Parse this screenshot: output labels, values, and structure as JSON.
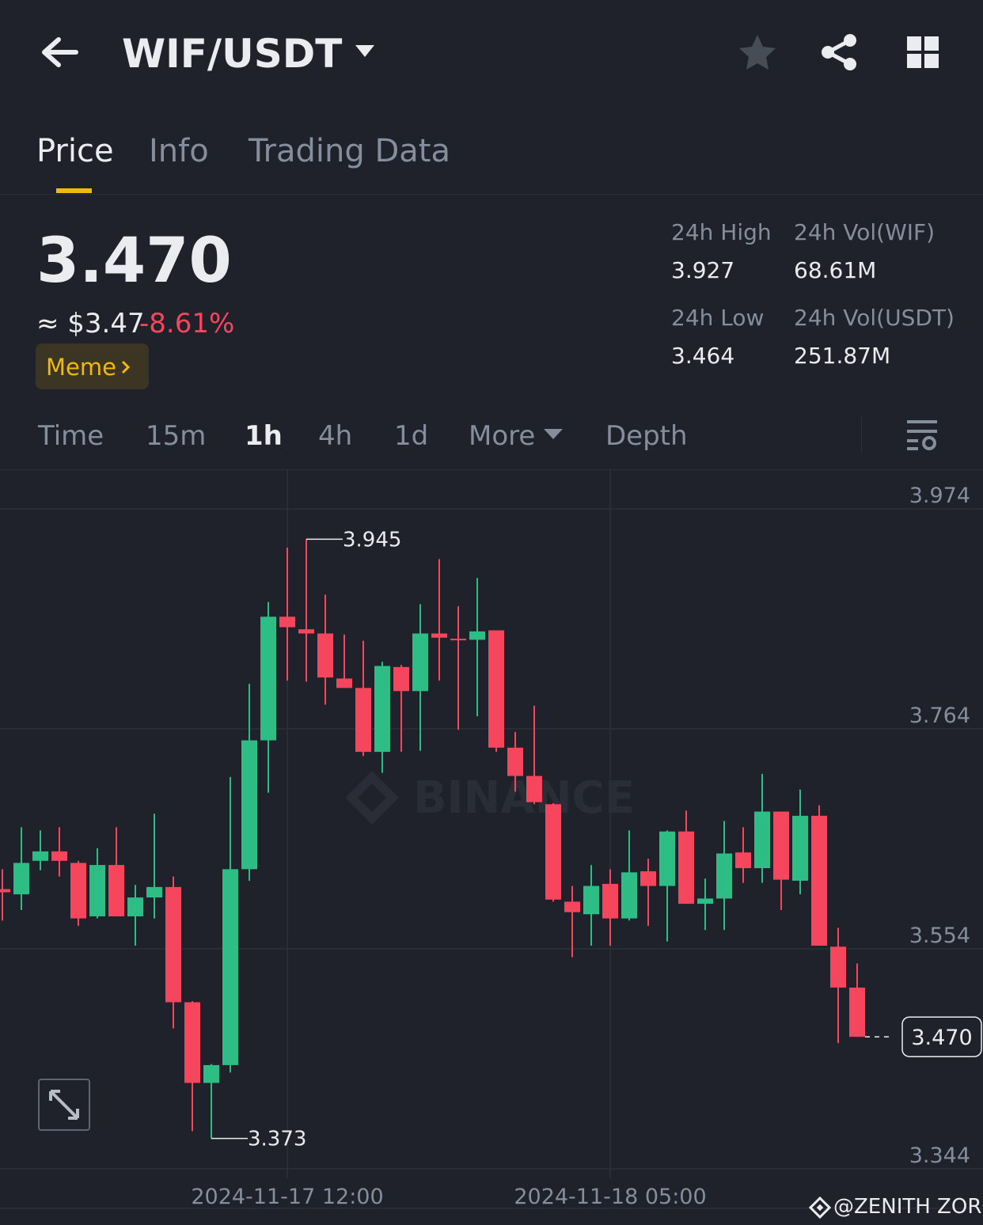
{
  "header": {
    "title": "WIF/USDT"
  },
  "tabs": [
    "Price",
    "Info",
    "Trading Data"
  ],
  "ticker": {
    "price": "3.470",
    "usd": "≈ $3.47",
    "change": "-8.61%",
    "tag": "Meme"
  },
  "stats": [
    {
      "label": "24h High",
      "value": "3.927"
    },
    {
      "label": "24h Vol(WIF)",
      "value": "68.61M"
    },
    {
      "label": "24h Low",
      "value": "3.464"
    },
    {
      "label": "24h Vol(USDT)",
      "value": "251.87M"
    }
  ],
  "intervals": [
    "Time",
    "15m",
    "1h",
    "4h",
    "1d",
    "More",
    "Depth"
  ],
  "watermark": "BINANCE",
  "credit": "@ZENITH ZORO",
  "chart_data": {
    "type": "candlestick",
    "x": [
      "2024-11-16 21:00",
      "2024-11-16 22:00",
      "2024-11-16 23:00",
      "2024-11-17 00:00",
      "2024-11-17 01:00",
      "2024-11-17 02:00",
      "2024-11-17 03:00",
      "2024-11-17 04:00",
      "2024-11-17 05:00",
      "2024-11-17 06:00",
      "2024-11-17 07:00",
      "2024-11-17 08:00",
      "2024-11-17 09:00",
      "2024-11-17 10:00",
      "2024-11-17 11:00",
      "2024-11-17 12:00",
      "2024-11-17 13:00",
      "2024-11-17 14:00",
      "2024-11-17 15:00",
      "2024-11-17 16:00",
      "2024-11-17 17:00",
      "2024-11-17 18:00",
      "2024-11-17 19:00",
      "2024-11-17 20:00",
      "2024-11-17 21:00",
      "2024-11-17 22:00",
      "2024-11-17 23:00",
      "2024-11-18 00:00",
      "2024-11-18 01:00",
      "2024-11-18 02:00",
      "2024-11-18 03:00",
      "2024-11-18 04:00",
      "2024-11-18 05:00",
      "2024-11-18 06:00",
      "2024-11-18 07:00",
      "2024-11-18 08:00",
      "2024-11-18 09:00",
      "2024-11-18 10:00",
      "2024-11-18 11:00",
      "2024-11-18 12:00",
      "2024-11-18 13:00",
      "2024-11-18 14:00",
      "2024-11-18 15:00",
      "2024-11-18 16:00",
      "2024-11-18 17:00",
      "2024-11-18 18:00"
    ],
    "open": [
      3.611,
      3.606,
      3.638,
      3.647,
      3.636,
      3.585,
      3.634,
      3.585,
      3.603,
      3.613,
      3.503,
      3.426,
      3.443,
      3.63,
      3.753,
      3.871,
      3.859,
      3.855,
      3.812,
      3.803,
      3.742,
      3.823,
      3.8,
      3.855,
      3.85,
      3.849,
      3.858,
      3.746,
      3.719,
      3.692,
      3.599,
      3.587,
      3.616,
      3.583,
      3.628,
      3.614,
      3.666,
      3.597,
      3.602,
      3.646,
      3.631,
      3.685,
      3.619,
      3.681,
      3.556,
      3.517
    ],
    "high": [
      3.63,
      3.67,
      3.667,
      3.67,
      3.638,
      3.65,
      3.67,
      3.615,
      3.683,
      3.623,
      3.504,
      3.444,
      3.718,
      3.807,
      3.885,
      3.937,
      3.945,
      3.892,
      3.854,
      3.848,
      3.828,
      3.825,
      3.883,
      3.926,
      3.881,
      3.908,
      3.858,
      3.761,
      3.786,
      3.693,
      3.614,
      3.634,
      3.63,
      3.667,
      3.64,
      3.667,
      3.686,
      3.621,
      3.676,
      3.67,
      3.721,
      3.685,
      3.706,
      3.691,
      3.574,
      3.54
    ],
    "low": [
      3.581,
      3.591,
      3.629,
      3.623,
      3.576,
      3.583,
      3.585,
      3.557,
      3.583,
      3.478,
      3.38,
      3.373,
      3.436,
      3.619,
      3.703,
      3.81,
      3.809,
      3.787,
      3.803,
      3.738,
      3.722,
      3.742,
      3.743,
      3.81,
      3.763,
      3.776,
      3.742,
      3.704,
      3.692,
      3.599,
      3.546,
      3.557,
      3.557,
      3.581,
      3.576,
      3.561,
      3.597,
      3.572,
      3.572,
      3.617,
      3.617,
      3.591,
      3.606,
      3.557,
      3.464,
      3.47
    ],
    "close": [
      3.608,
      3.636,
      3.647,
      3.638,
      3.583,
      3.634,
      3.585,
      3.603,
      3.613,
      3.503,
      3.426,
      3.443,
      3.63,
      3.753,
      3.871,
      3.861,
      3.855,
      3.813,
      3.803,
      3.742,
      3.824,
      3.8,
      3.855,
      3.851,
      3.849,
      3.857,
      3.746,
      3.719,
      3.694,
      3.601,
      3.589,
      3.614,
      3.583,
      3.627,
      3.614,
      3.666,
      3.597,
      3.602,
      3.645,
      3.631,
      3.685,
      3.62,
      3.681,
      3.557,
      3.517,
      3.47
    ],
    "up_color": "#2ebd85",
    "down_color": "#f6465d",
    "ylim": [
      3.344,
      4.011
    ],
    "yticks": [
      3.974,
      3.764,
      3.554,
      3.344
    ],
    "xticks": [
      "2024-11-17 12:00",
      "2024-11-18 05:00"
    ],
    "annotations": [
      3.945,
      3.373
    ],
    "last_price": {
      "value": 3.47,
      "label": "3.470"
    },
    "grid": true
  }
}
